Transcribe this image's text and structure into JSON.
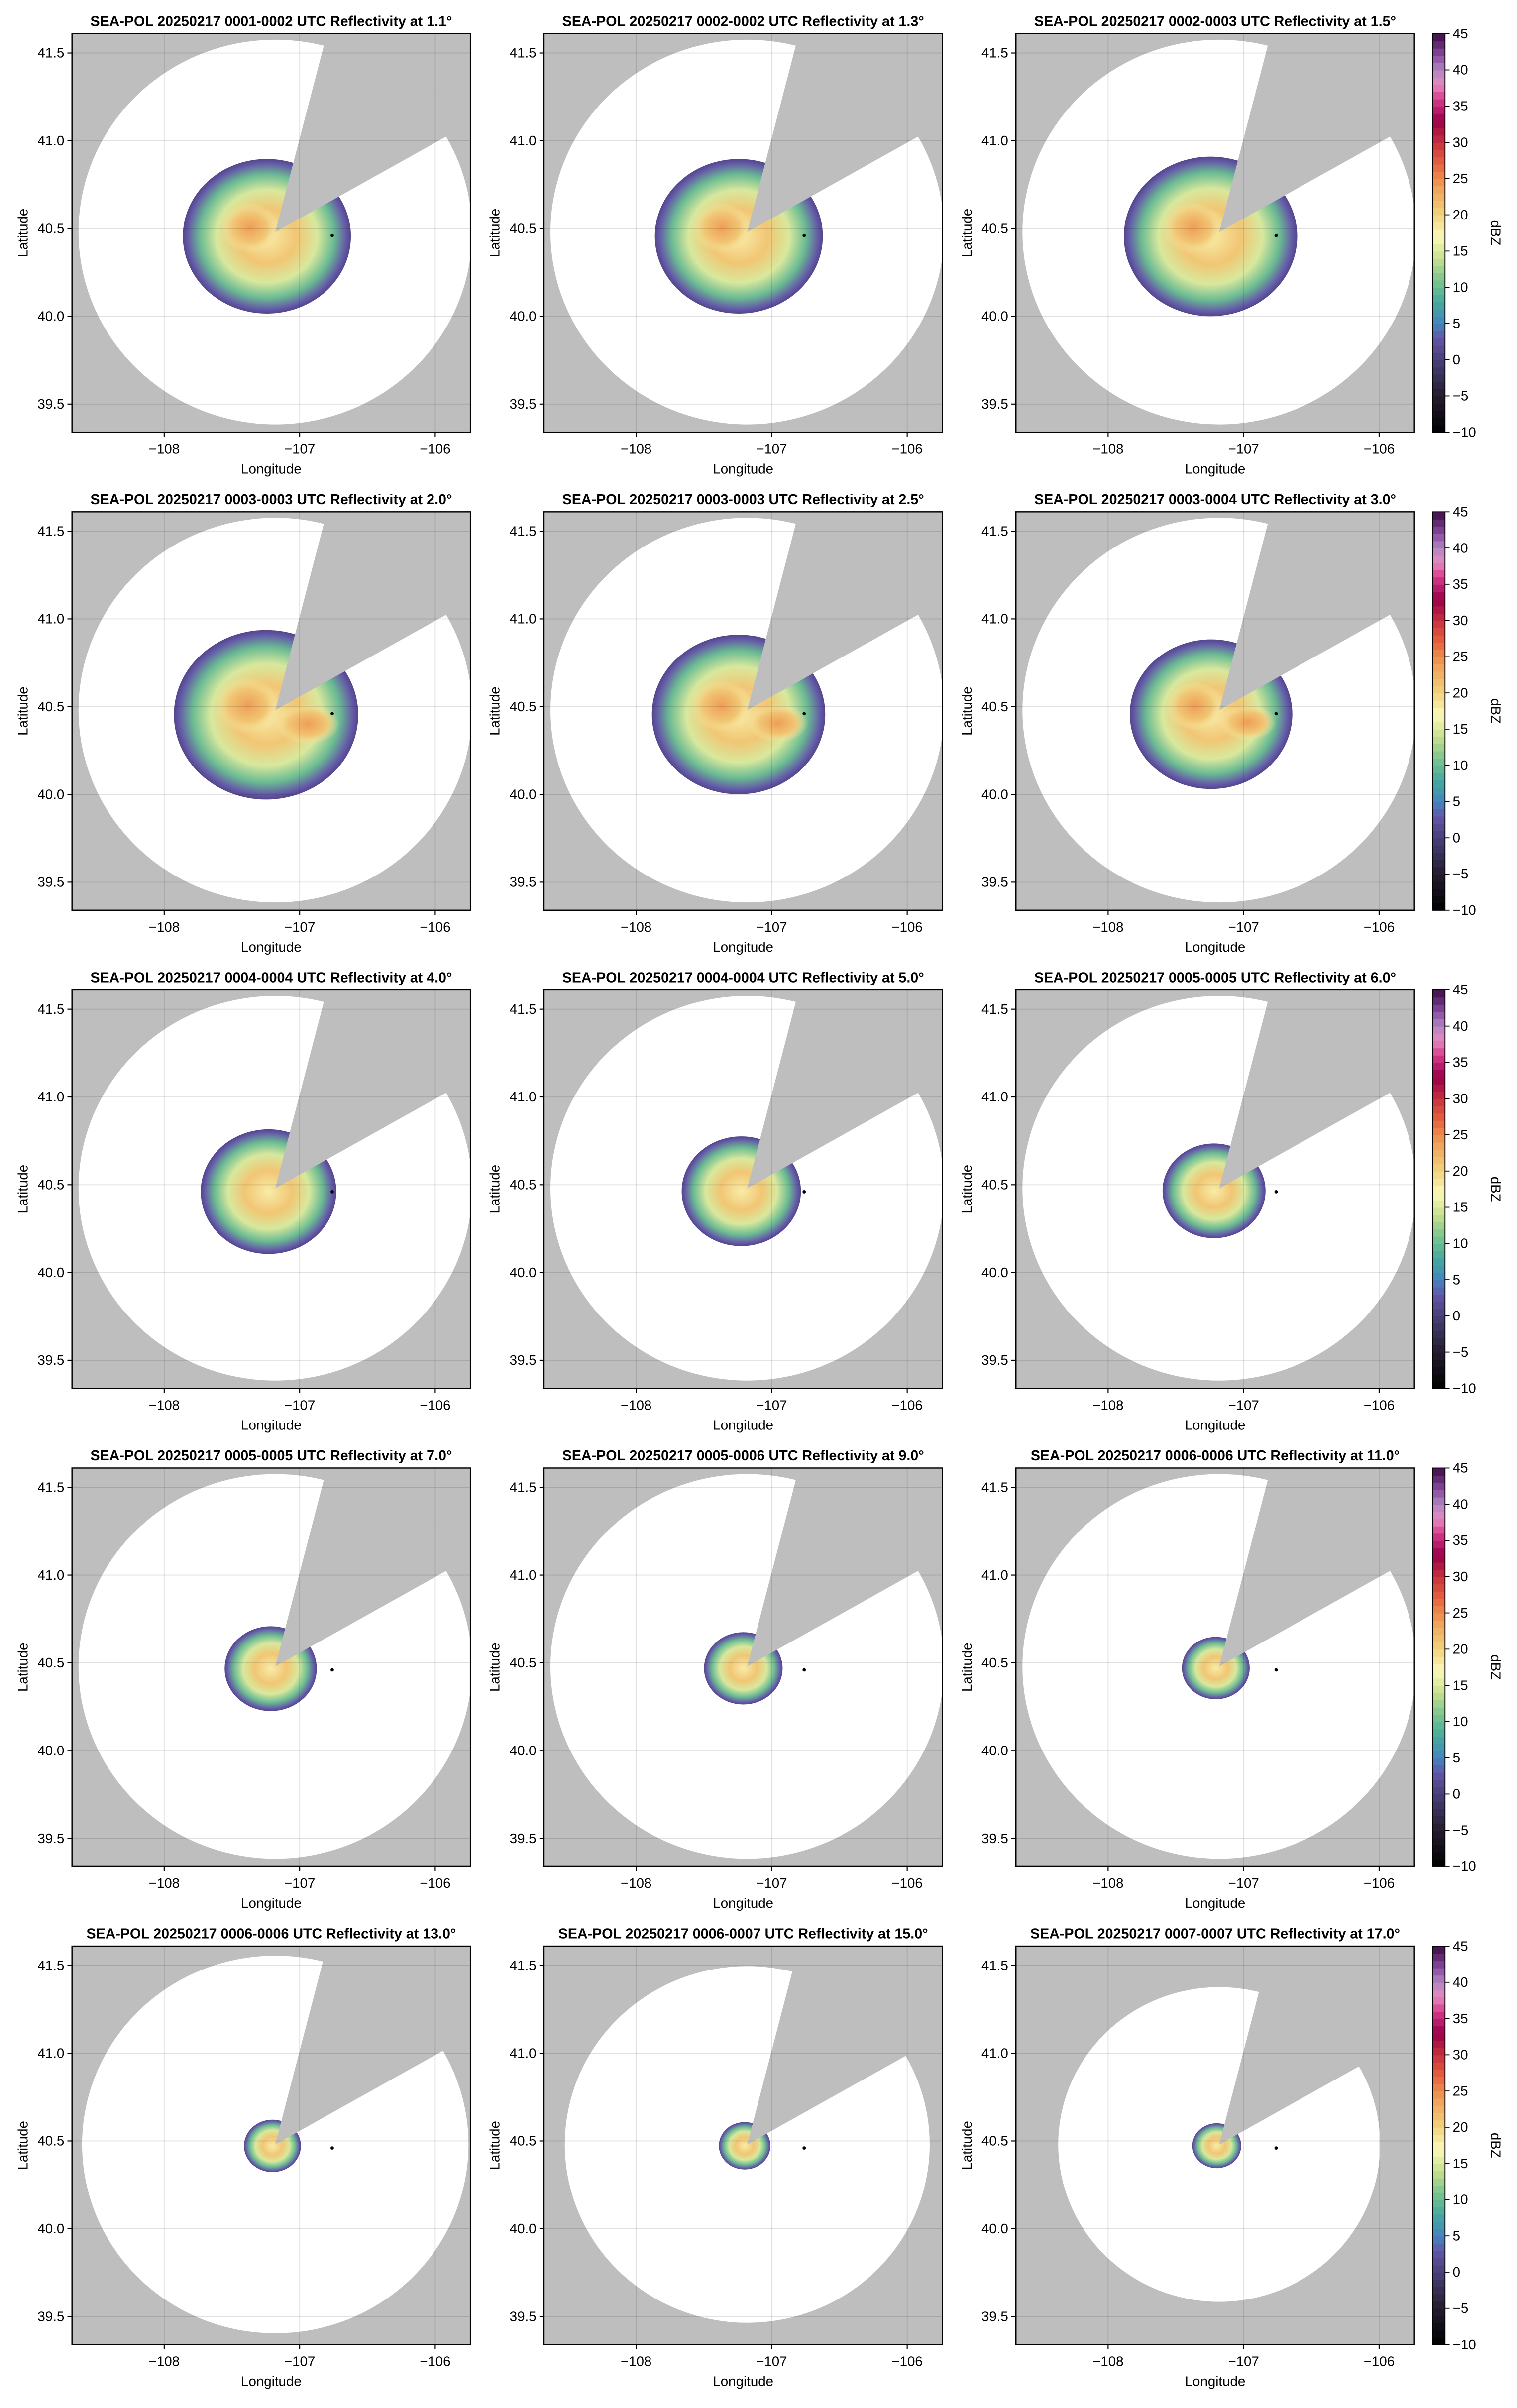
{
  "chart_data": {
    "type": "heatmap",
    "description_units": "radar reflectivity PPI panels, dBZ",
    "panels": [
      {
        "title": "SEA-POL 20250217 0001-0002 UTC Reflectivity at 1.1°",
        "elevation": 1.1,
        "echo_extent_deg": 0.62,
        "range_deg": 1.1
      },
      {
        "title": "SEA-POL 20250217 0002-0002 UTC Reflectivity at 1.3°",
        "elevation": 1.3,
        "echo_extent_deg": 0.62,
        "range_deg": 1.1
      },
      {
        "title": "SEA-POL 20250217 0002-0003 UTC Reflectivity at 1.5°",
        "elevation": 1.5,
        "echo_extent_deg": 0.64,
        "range_deg": 1.1
      },
      {
        "title": "SEA-POL 20250217 0003-0003 UTC Reflectivity at 2.0°",
        "elevation": 2.0,
        "echo_extent_deg": 0.68,
        "range_deg": 1.1
      },
      {
        "title": "SEA-POL 20250217 0003-0003 UTC Reflectivity at 2.5°",
        "elevation": 2.5,
        "echo_extent_deg": 0.64,
        "range_deg": 1.1
      },
      {
        "title": "SEA-POL 20250217 0003-0004 UTC Reflectivity at 3.0°",
        "elevation": 3.0,
        "echo_extent_deg": 0.6,
        "range_deg": 1.1
      },
      {
        "title": "SEA-POL 20250217 0004-0004 UTC Reflectivity at 4.0°",
        "elevation": 4.0,
        "echo_extent_deg": 0.5,
        "range_deg": 1.1
      },
      {
        "title": "SEA-POL 20250217 0004-0004 UTC Reflectivity at 5.0°",
        "elevation": 5.0,
        "echo_extent_deg": 0.44,
        "range_deg": 1.1
      },
      {
        "title": "SEA-POL 20250217 0005-0005 UTC Reflectivity at 6.0°",
        "elevation": 6.0,
        "echo_extent_deg": 0.38,
        "range_deg": 1.1
      },
      {
        "title": "SEA-POL 20250217 0005-0005 UTC Reflectivity at 7.0°",
        "elevation": 7.0,
        "echo_extent_deg": 0.34,
        "range_deg": 1.1
      },
      {
        "title": "SEA-POL 20250217 0005-0006 UTC Reflectivity at 9.0°",
        "elevation": 9.0,
        "echo_extent_deg": 0.29,
        "range_deg": 1.1
      },
      {
        "title": "SEA-POL 20250217 0006-0006 UTC Reflectivity at 11.0°",
        "elevation": 11.0,
        "echo_extent_deg": 0.25,
        "range_deg": 1.1
      },
      {
        "title": "SEA-POL 20250217 0006-0006 UTC Reflectivity at 13.0°",
        "elevation": 13.0,
        "echo_extent_deg": 0.21,
        "range_deg": 1.08
      },
      {
        "title": "SEA-POL 20250217 0006-0007 UTC Reflectivity at 15.0°",
        "elevation": 15.0,
        "echo_extent_deg": 0.19,
        "range_deg": 1.02
      },
      {
        "title": "SEA-POL 20250217 0007-0007 UTC Reflectivity at 17.0°",
        "elevation": 17.0,
        "echo_extent_deg": 0.18,
        "range_deg": 0.9
      }
    ],
    "xlabel": "Longitude",
    "ylabel": "Latitude",
    "xlim": [
      -108.68,
      -105.74
    ],
    "ylim": [
      39.34,
      41.61
    ],
    "xticks": [
      -108,
      -107,
      -106
    ],
    "xtick_labels": [
      "−108",
      "−107",
      "−106"
    ],
    "yticks": [
      39.5,
      40.0,
      40.5,
      41.0,
      41.5
    ],
    "ytick_labels": [
      "39.5",
      "40.0",
      "40.5",
      "41.0",
      "41.5"
    ],
    "radar_location": [
      -107.18,
      40.48
    ],
    "marker_location": [
      -106.76,
      40.46
    ],
    "blocked_sector_deg": [
      [
        14.6,
        60.8
      ]
    ],
    "grid": true,
    "colorbar": {
      "label": "dBZ",
      "range": [
        -10,
        45
      ],
      "ticks": [
        45,
        40,
        35,
        30,
        25,
        20,
        15,
        10,
        5,
        0,
        -5,
        -10
      ],
      "tick_labels": [
        "45",
        "40",
        "35",
        "30",
        "25",
        "20",
        "15",
        "10",
        "5",
        "0",
        "−5",
        "−10"
      ]
    },
    "colors": {
      "missing": "#bebebe",
      "background": "#ffffff"
    }
  }
}
